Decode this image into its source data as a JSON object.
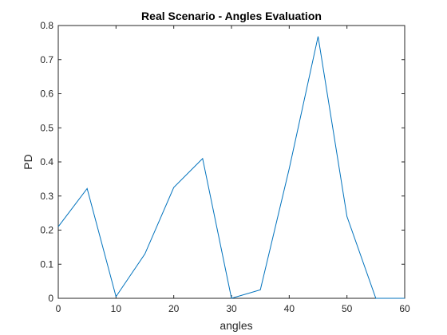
{
  "chart_data": {
    "type": "line",
    "title": "Real Scenario - Angles Evaluation",
    "xlabel": "angles",
    "ylabel": "PD",
    "xlim": [
      0,
      60
    ],
    "ylim": [
      0,
      0.8
    ],
    "x_ticks": [
      0,
      10,
      20,
      30,
      40,
      50,
      60
    ],
    "x_tick_labels": [
      "0",
      "10",
      "20",
      "30",
      "40",
      "50",
      "60"
    ],
    "y_ticks": [
      0,
      0.1,
      0.2,
      0.3,
      0.4,
      0.5,
      0.6,
      0.7,
      0.8
    ],
    "y_tick_labels": [
      "0",
      "0.1",
      "0.2",
      "0.3",
      "0.4",
      "0.5",
      "0.6",
      "0.7",
      "0.8"
    ],
    "grid": false,
    "series": [
      {
        "color": "#0072bd",
        "x": [
          0,
          5,
          10,
          15,
          20,
          25,
          30,
          35,
          40,
          45,
          50,
          55,
          60
        ],
        "y": [
          0.21,
          0.322,
          0.005,
          0.13,
          0.325,
          0.41,
          0,
          0.025,
          0.38,
          0.768,
          0.24,
          0,
          0
        ]
      }
    ]
  }
}
